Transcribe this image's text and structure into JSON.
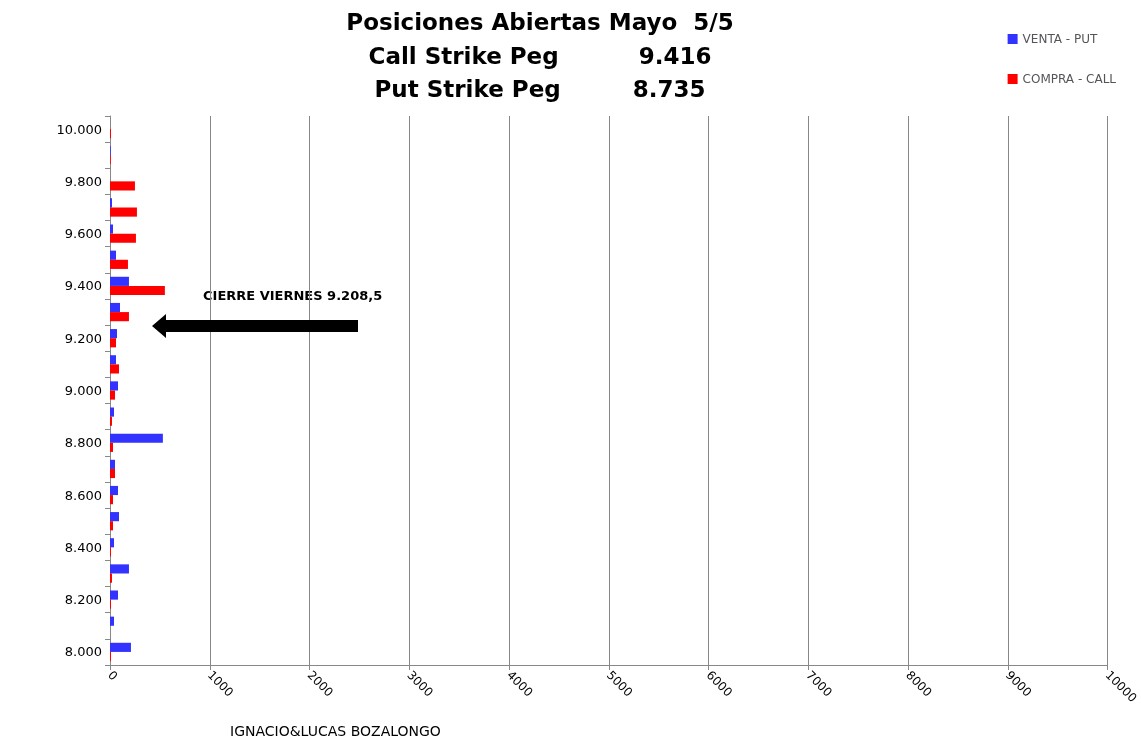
{
  "chart_data": {
    "type": "bar",
    "orientation": "horizontal",
    "title": "Posiciones Abiertas Mayo  5/5",
    "subtitle": "Call Strike Peg          9.416\nPut Strike Peg         8.735",
    "categories": [
      "10.000",
      null,
      "9.800",
      null,
      "9.600",
      null,
      "9.400",
      null,
      "9.200",
      null,
      "9.000",
      null,
      "8.800",
      null,
      "8.600",
      null,
      "8.400",
      null,
      "8.200",
      null,
      "8.000"
    ],
    "series": [
      {
        "name": "VENTA - PUT",
        "color": "#3333ff",
        "values": [
          0,
          8,
          0,
          20,
          30,
          60,
          190,
          100,
          70,
          60,
          80,
          40,
          530,
          50,
          80,
          90,
          40,
          190,
          80,
          40,
          210
        ]
      },
      {
        "name": "COMPRA - CALL",
        "color": "#ff0000",
        "values": [
          10,
          8,
          250,
          270,
          260,
          180,
          550,
          190,
          60,
          90,
          50,
          20,
          30,
          50,
          30,
          30,
          10,
          20,
          10,
          0,
          10
        ]
      }
    ],
    "xlim": [
      0,
      10000
    ],
    "xticks": [
      0,
      1000,
      2000,
      3000,
      4000,
      5000,
      6000,
      7000,
      8000,
      9000,
      10000
    ],
    "grid": "x",
    "legend": "top right",
    "annotations": [
      "CIERRE VIERNES 9.208,5",
      "IGNACIO&LUCAS BOZALONGO"
    ]
  }
}
